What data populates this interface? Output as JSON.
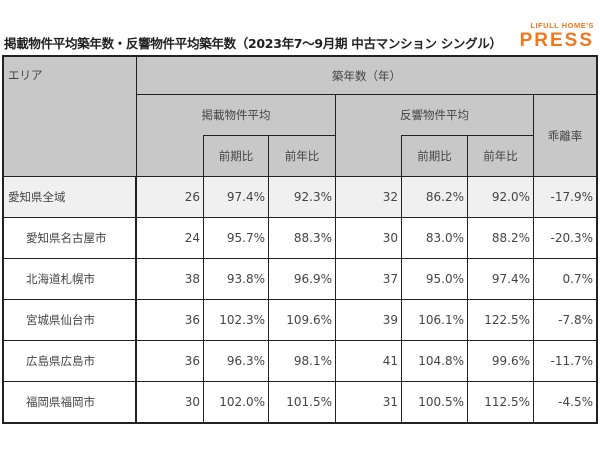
{
  "title": "掲載物件平均築年数・反響物件平均築年数（2023年7～9月期 中古マンション シングル）",
  "logo": {
    "top": "LIFULL HOME'S",
    "main": "PRESS",
    "color": "#f0781e"
  },
  "header": {
    "area": "エリア",
    "main": "築年数（年）",
    "listed": "掲載物件平均",
    "response": "反響物件平均",
    "gap": "乖離率",
    "qoq": "前期比",
    "yoy": "前年比"
  },
  "rows": [
    {
      "area": "愛知県全域",
      "listed": "26",
      "listed_qoq": "97.4%",
      "listed_yoy": "92.3%",
      "resp": "32",
      "resp_qoq": "86.2%",
      "resp_yoy": "92.0%",
      "gap": "-17.9%"
    },
    {
      "area": "愛知県名古屋市",
      "listed": "24",
      "listed_qoq": "95.7%",
      "listed_yoy": "88.3%",
      "resp": "30",
      "resp_qoq": "83.0%",
      "resp_yoy": "88.2%",
      "gap": "-20.3%"
    },
    {
      "area": "北海道札幌市",
      "listed": "38",
      "listed_qoq": "93.8%",
      "listed_yoy": "96.9%",
      "resp": "37",
      "resp_qoq": "95.0%",
      "resp_yoy": "97.4%",
      "gap": "0.7%"
    },
    {
      "area": "宮城県仙台市",
      "listed": "36",
      "listed_qoq": "102.3%",
      "listed_yoy": "109.6%",
      "resp": "39",
      "resp_qoq": "106.1%",
      "resp_yoy": "122.5%",
      "gap": "-7.8%"
    },
    {
      "area": "広島県広島市",
      "listed": "36",
      "listed_qoq": "96.3%",
      "listed_yoy": "98.1%",
      "resp": "41",
      "resp_qoq": "104.8%",
      "resp_yoy": "99.6%",
      "gap": "-11.7%"
    },
    {
      "area": "福岡県福岡市",
      "listed": "30",
      "listed_qoq": "102.0%",
      "listed_yoy": "101.5%",
      "resp": "31",
      "resp_qoq": "100.5%",
      "resp_yoy": "112.5%",
      "gap": "-4.5%"
    }
  ]
}
